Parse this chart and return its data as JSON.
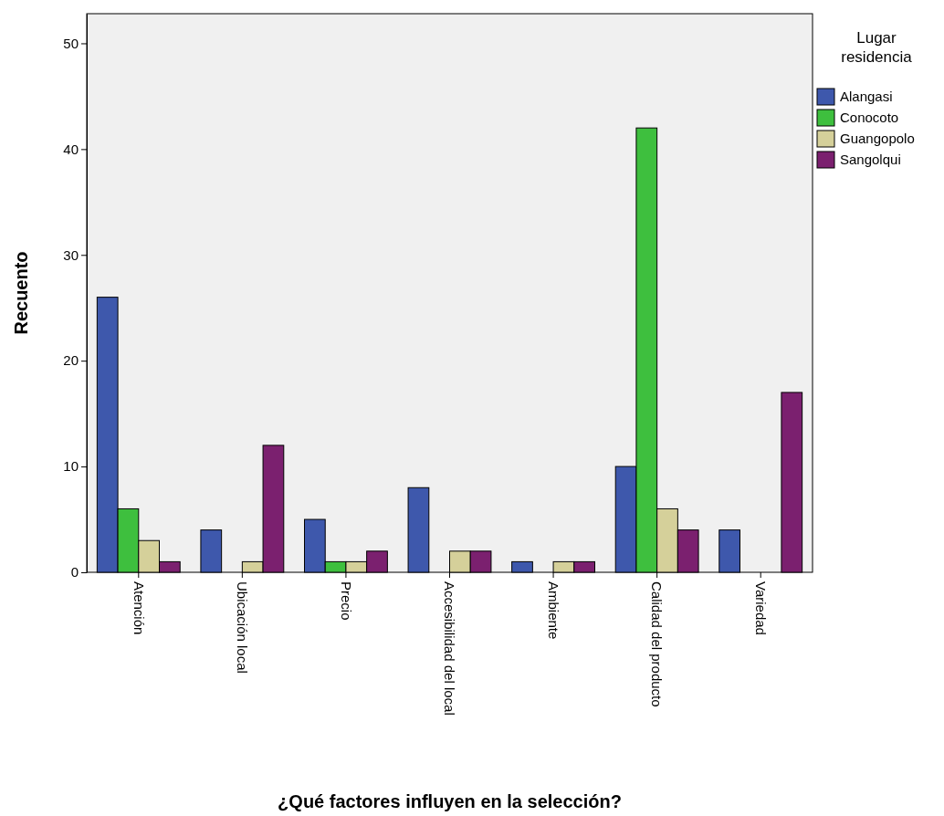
{
  "chart_data": {
    "type": "bar",
    "xlabel": "¿Qué factores influyen en la selección?",
    "ylabel": "Recuento",
    "legend_title": "Lugar residencia",
    "categories": [
      "Atención",
      "Ubicación local",
      "Precio",
      "Accesibilidad del local",
      "Ambiente",
      "Calidad del producto",
      "Variedad"
    ],
    "series": [
      {
        "name": "Alangasi",
        "color": "#3e58ac",
        "values": [
          26,
          4,
          5,
          8,
          1,
          10,
          4
        ]
      },
      {
        "name": "Conocoto",
        "color": "#3ebf3e",
        "values": [
          6,
          0,
          1,
          0,
          0,
          42,
          0
        ]
      },
      {
        "name": "Guangopolo",
        "color": "#d5d09a",
        "values": [
          3,
          1,
          1,
          2,
          1,
          6,
          0
        ]
      },
      {
        "name": "Sangolqui",
        "color": "#7b206f",
        "values": [
          1,
          12,
          2,
          2,
          1,
          4,
          17
        ]
      }
    ],
    "ylim": [
      0,
      52.8
    ],
    "yticks": [
      0,
      10,
      20,
      30,
      40,
      50
    ],
    "grid": false,
    "legend": "right"
  }
}
